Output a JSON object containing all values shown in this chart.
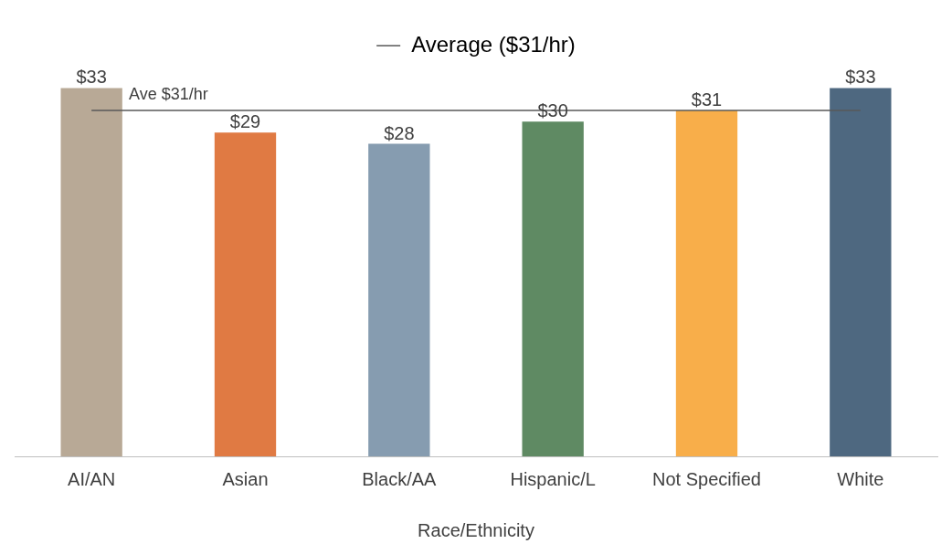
{
  "chart_data": {
    "type": "bar",
    "xlabel": "Race/Ethnicity",
    "categories": [
      "AI/AN",
      "Asian",
      "Black/AA",
      "Hispanic/L",
      "Not Specified",
      "White"
    ],
    "series": [
      {
        "values": [
          33,
          29,
          28,
          30,
          31,
          33
        ],
        "value_labels": [
          "$33",
          "$29",
          "$28",
          "$30",
          "$31",
          "$33"
        ],
        "colors": [
          "#b8a996",
          "#e07a43",
          "#869cb0",
          "#5f8a63",
          "#f8ae4a",
          "#4e6880"
        ]
      },
      {
        "type": "line",
        "name": "Average ($31/hr)",
        "color": "#595959",
        "values": [
          31,
          31,
          31,
          31,
          31,
          31
        ]
      }
    ],
    "grid": false,
    "legend": "top",
    "marker": "none",
    "line_style": "solid",
    "annotations": [
      {
        "text": "Ave $31/hr",
        "y": 31
      }
    ]
  }
}
